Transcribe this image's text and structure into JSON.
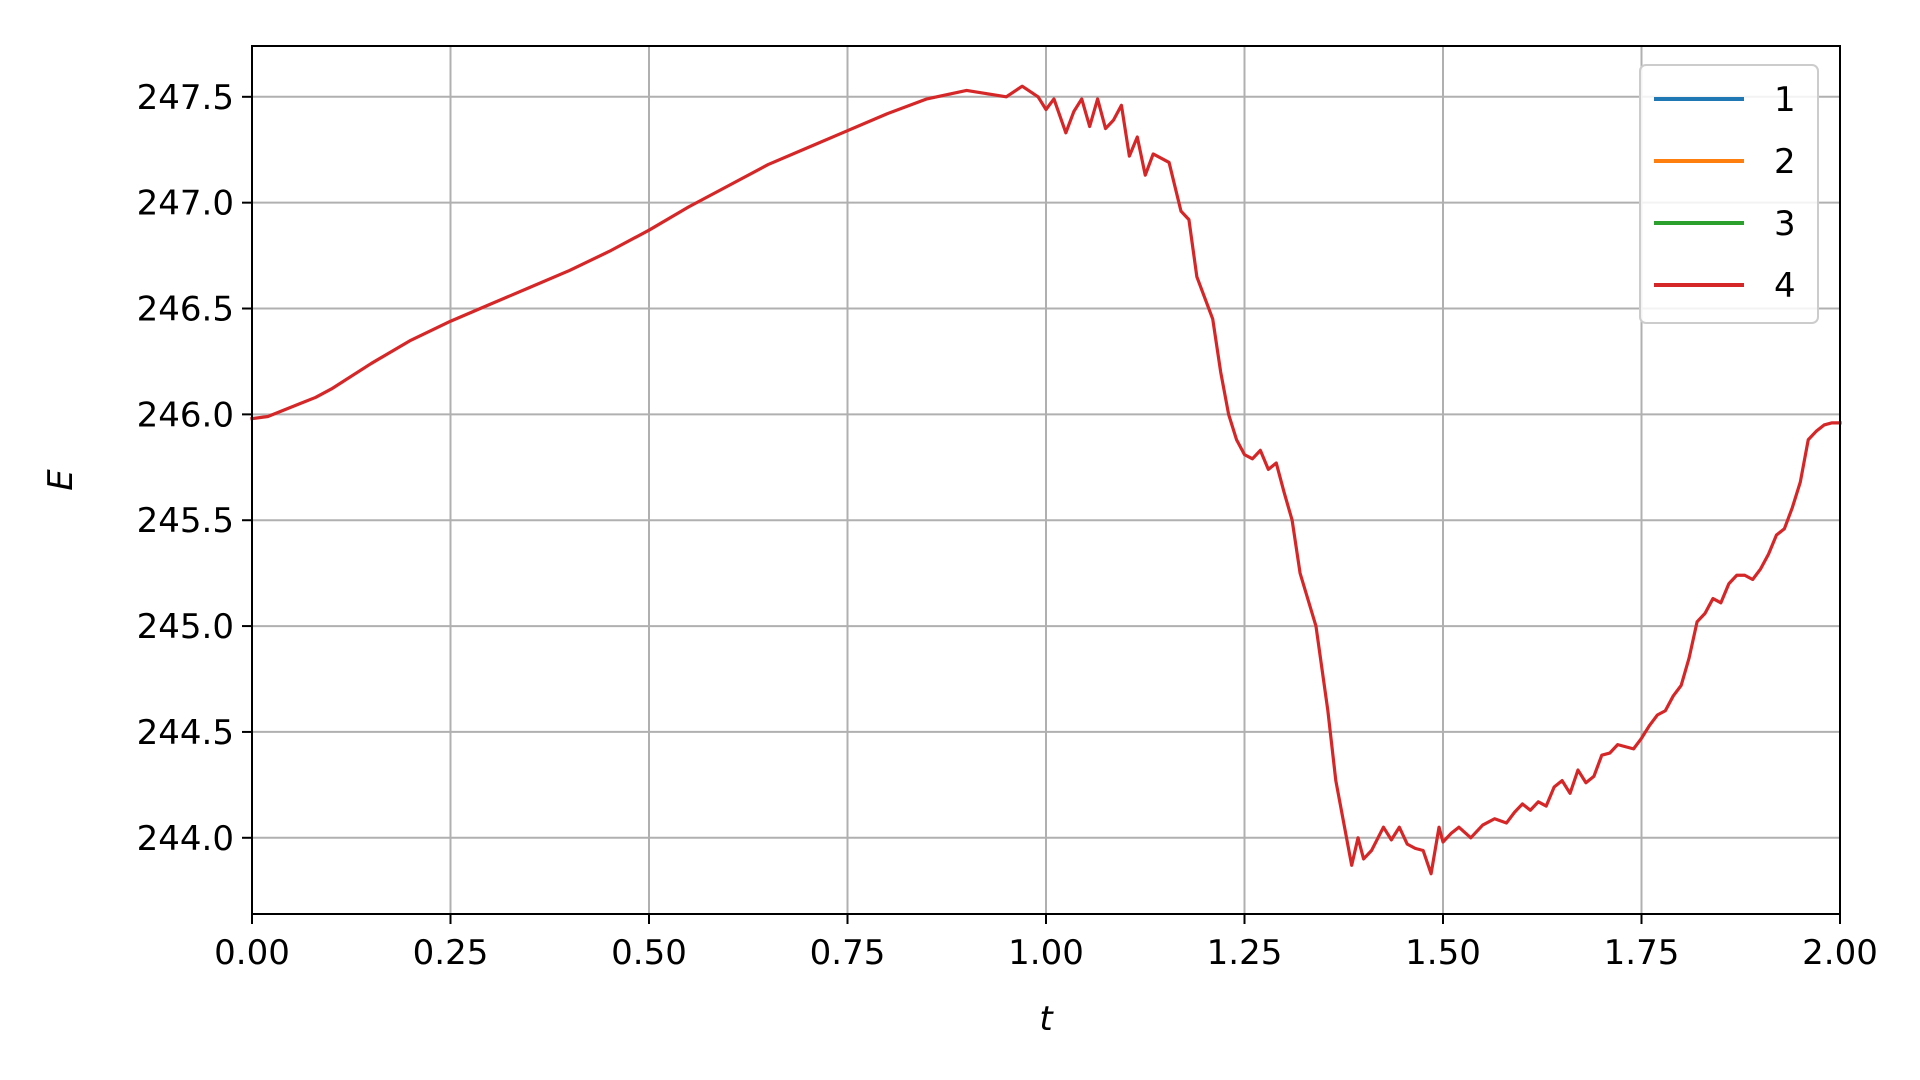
{
  "chart_data": {
    "type": "line",
    "xlabel": "t",
    "ylabel": "E",
    "xlim": [
      0.0,
      2.0
    ],
    "ylim": [
      243.64,
      247.74
    ],
    "xticks": [
      "0.00",
      "0.25",
      "0.50",
      "0.75",
      "1.00",
      "1.25",
      "1.50",
      "1.75",
      "2.00"
    ],
    "yticks": [
      "244.0",
      "244.5",
      "245.0",
      "245.5",
      "246.0",
      "246.5",
      "247.0",
      "247.5"
    ],
    "grid": true,
    "legend_position": "top-right",
    "series": [
      {
        "name": "1",
        "color": "#1f77b4",
        "x": [],
        "y": []
      },
      {
        "name": "2",
        "color": "#ff7f0e",
        "x": [],
        "y": []
      },
      {
        "name": "3",
        "color": "#2ca02c",
        "x": [],
        "y": []
      },
      {
        "name": "4",
        "color": "#d62728",
        "x": [
          0.0,
          0.02,
          0.04,
          0.06,
          0.08,
          0.1,
          0.15,
          0.2,
          0.25,
          0.3,
          0.35,
          0.4,
          0.45,
          0.5,
          0.55,
          0.6,
          0.65,
          0.7,
          0.75,
          0.8,
          0.85,
          0.9,
          0.95,
          0.97,
          0.99,
          1.0,
          1.01,
          1.025,
          1.035,
          1.045,
          1.055,
          1.065,
          1.075,
          1.085,
          1.095,
          1.105,
          1.115,
          1.125,
          1.135,
          1.145,
          1.155,
          1.17,
          1.18,
          1.19,
          1.2,
          1.21,
          1.22,
          1.23,
          1.24,
          1.25,
          1.26,
          1.27,
          1.28,
          1.29,
          1.3,
          1.31,
          1.32,
          1.34,
          1.355,
          1.365,
          1.375,
          1.385,
          1.393,
          1.4,
          1.41,
          1.425,
          1.435,
          1.445,
          1.455,
          1.465,
          1.475,
          1.485,
          1.495,
          1.5,
          1.51,
          1.52,
          1.535,
          1.55,
          1.565,
          1.58,
          1.59,
          1.6,
          1.61,
          1.62,
          1.63,
          1.64,
          1.65,
          1.66,
          1.67,
          1.68,
          1.69,
          1.7,
          1.71,
          1.72,
          1.74,
          1.75,
          1.76,
          1.77,
          1.78,
          1.79,
          1.8,
          1.81,
          1.82,
          1.83,
          1.84,
          1.85,
          1.86,
          1.87,
          1.88,
          1.89,
          1.9,
          1.91,
          1.92,
          1.93,
          1.94,
          1.95,
          1.96,
          1.97,
          1.98,
          1.99,
          2.0
        ],
        "y": [
          245.98,
          245.99,
          246.02,
          246.05,
          246.08,
          246.12,
          246.24,
          246.35,
          246.44,
          246.52,
          246.6,
          246.68,
          246.77,
          246.87,
          246.98,
          247.08,
          247.18,
          247.26,
          247.34,
          247.42,
          247.49,
          247.53,
          247.5,
          247.55,
          247.5,
          247.44,
          247.49,
          247.33,
          247.43,
          247.49,
          247.36,
          247.49,
          247.35,
          247.39,
          247.46,
          247.22,
          247.31,
          247.13,
          247.23,
          247.21,
          247.19,
          246.96,
          246.92,
          246.65,
          246.55,
          246.45,
          246.2,
          246.0,
          245.88,
          245.81,
          245.79,
          245.83,
          245.74,
          245.77,
          245.63,
          245.5,
          245.25,
          245.0,
          244.6,
          244.27,
          244.07,
          243.87,
          244.0,
          243.9,
          243.94,
          244.05,
          243.99,
          244.05,
          243.97,
          243.95,
          243.94,
          243.83,
          244.05,
          243.98,
          244.02,
          244.05,
          244.0,
          244.06,
          244.09,
          244.07,
          244.12,
          244.16,
          244.13,
          244.17,
          244.15,
          244.24,
          244.27,
          244.21,
          244.32,
          244.26,
          244.29,
          244.39,
          244.4,
          244.44,
          244.42,
          244.47,
          244.53,
          244.58,
          244.6,
          244.67,
          244.72,
          244.85,
          245.02,
          245.06,
          245.13,
          245.11,
          245.2,
          245.24,
          245.24,
          245.22,
          245.27,
          245.34,
          245.43,
          245.46,
          245.56,
          245.68,
          245.88,
          245.92,
          245.95,
          245.96,
          245.96
        ]
      }
    ]
  }
}
